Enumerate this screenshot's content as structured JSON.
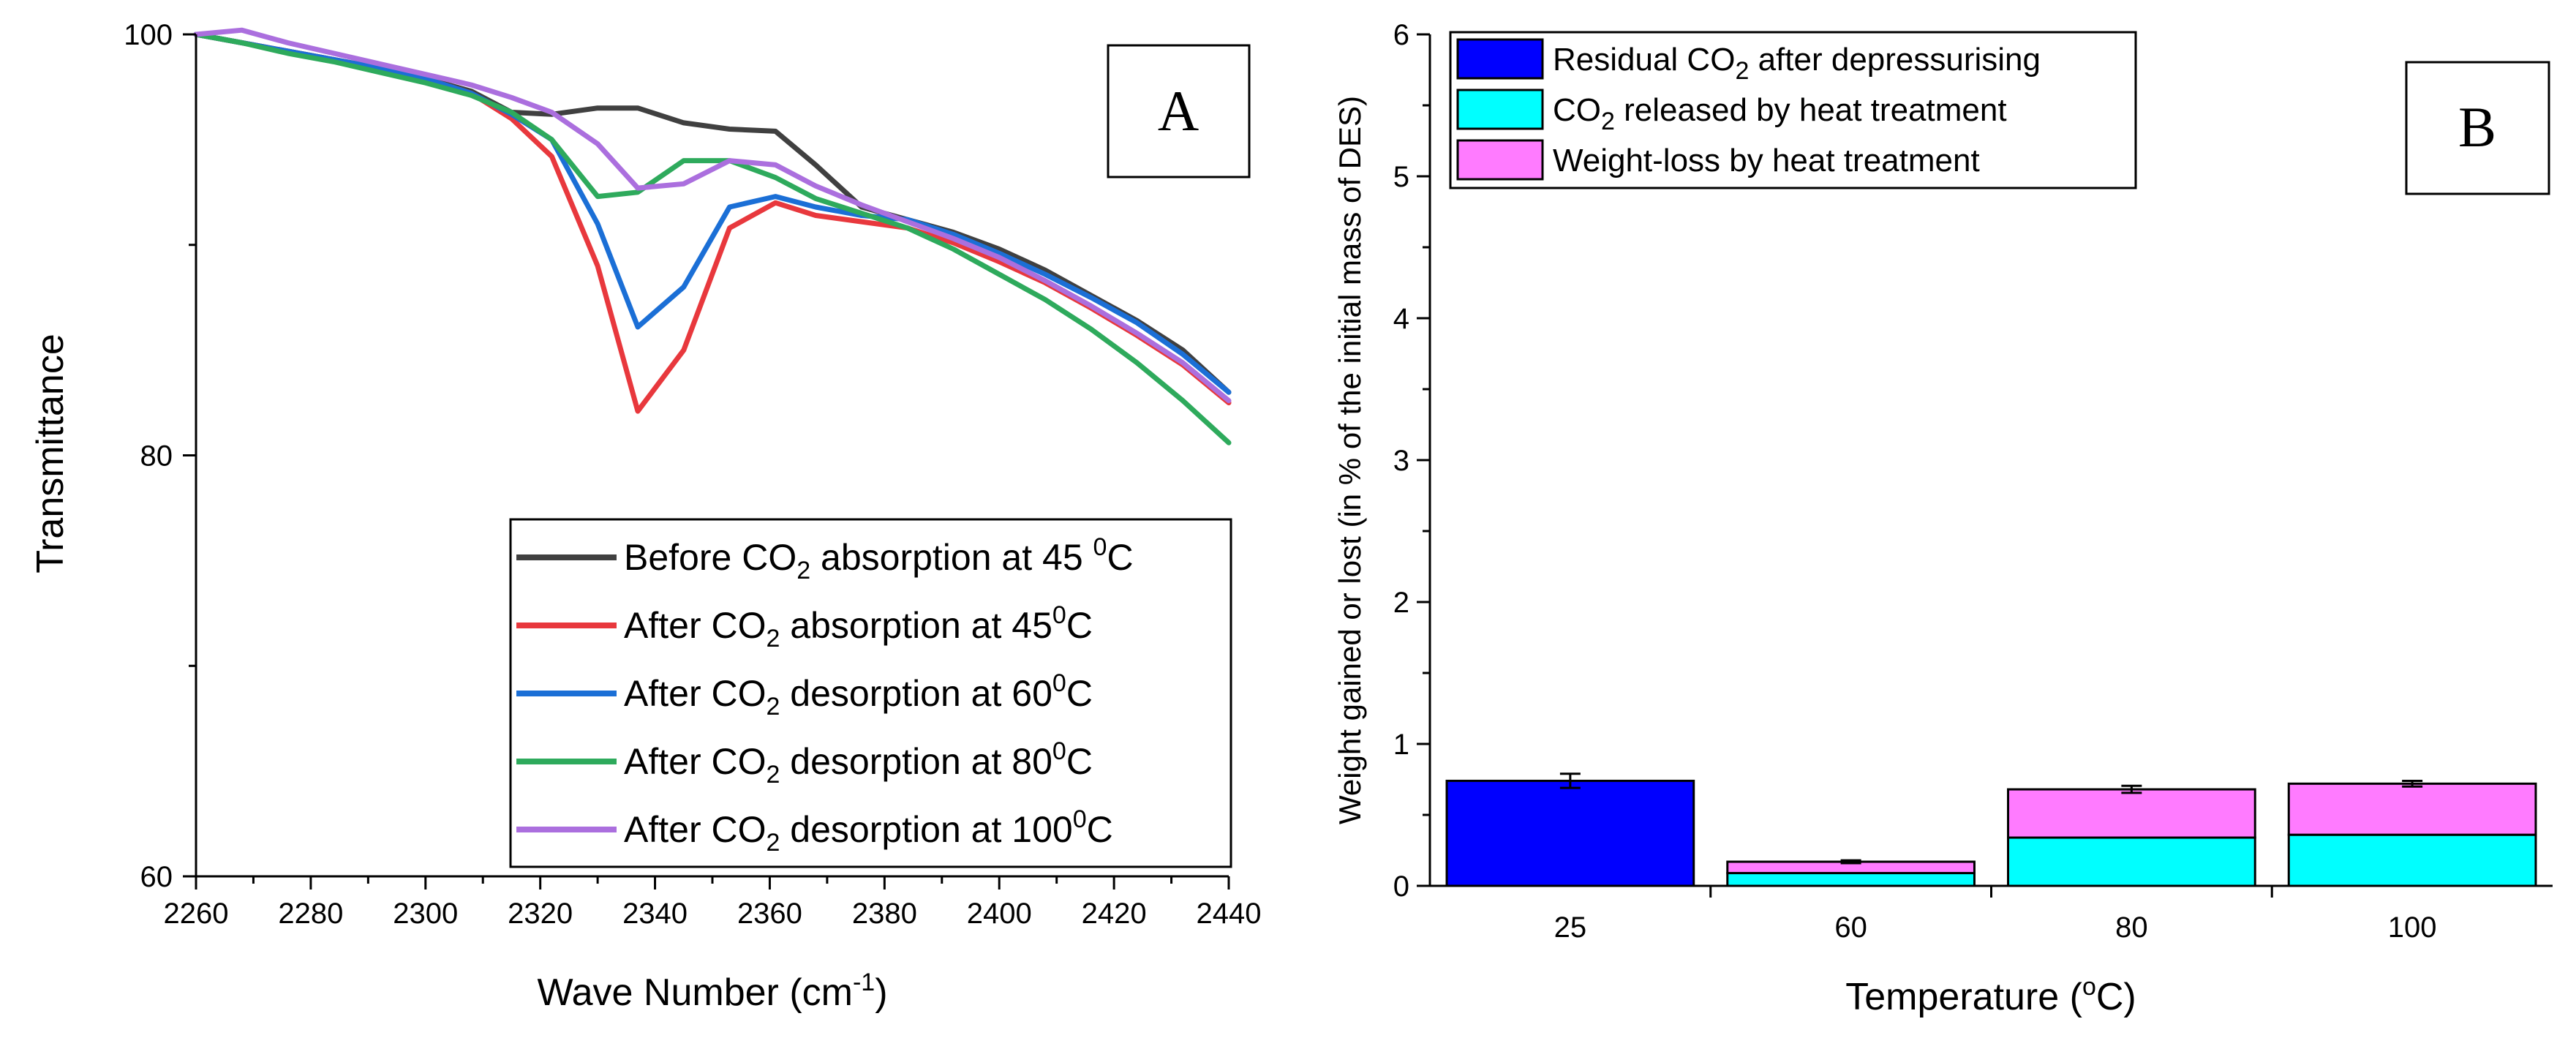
{
  "chart_data": [
    {
      "panel": "A",
      "type": "line",
      "xlabel": "Wave Number (cm",
      "xlabel_sup": "-1",
      "xlabel_end": ")",
      "ylabel": "Transmittance",
      "xlim": [
        2260,
        2440
      ],
      "ylim": [
        60,
        100
      ],
      "x_ticks": [
        "2260",
        "2280",
        "2300",
        "2320",
        "2340",
        "2360",
        "2380",
        "2400",
        "2420",
        "2440"
      ],
      "y_ticks": [
        "60",
        "80",
        "100"
      ],
      "grid": false,
      "legend_position": "bottom-right",
      "series": [
        {
          "name": "Before CO2 absorption at 45 0C",
          "legend": {
            "a": "Before CO",
            "sub": "2",
            "b": " absorption at 45 ",
            "sup": "0",
            "c": "C"
          },
          "color": "#404040",
          "points": [
            [
              2260,
              100
            ],
            [
              2268,
              99.6
            ],
            [
              2276,
              99.2
            ],
            [
              2284,
              98.8
            ],
            [
              2292,
              98.4
            ],
            [
              2300,
              97.9
            ],
            [
              2308,
              97.3
            ],
            [
              2315,
              96.3
            ],
            [
              2322,
              96.2
            ],
            [
              2330,
              96.5
            ],
            [
              2337,
              96.5
            ],
            [
              2345,
              95.8
            ],
            [
              2353,
              95.5
            ],
            [
              2361,
              95.4
            ],
            [
              2368,
              93.8
            ],
            [
              2376,
              91.8
            ],
            [
              2384,
              91.2
            ],
            [
              2392,
              90.6
            ],
            [
              2400,
              89.8
            ],
            [
              2408,
              88.8
            ],
            [
              2416,
              87.6
            ],
            [
              2424,
              86.4
            ],
            [
              2432,
              85.0
            ],
            [
              2440,
              83.0
            ]
          ]
        },
        {
          "name": "After CO2 absorption at 450C",
          "legend": {
            "a": "After CO",
            "sub": "2",
            "b": " absorption at 45",
            "sup": "0",
            "c": "C"
          },
          "color": "#e8383d",
          "points": [
            [
              2260,
              100
            ],
            [
              2268,
              99.6
            ],
            [
              2276,
              99.2
            ],
            [
              2284,
              98.8
            ],
            [
              2292,
              98.4
            ],
            [
              2300,
              97.9
            ],
            [
              2308,
              97.2
            ],
            [
              2315,
              96.0
            ],
            [
              2322,
              94.2
            ],
            [
              2330,
              89.0
            ],
            [
              2337,
              82.1
            ],
            [
              2345,
              85.0
            ],
            [
              2353,
              90.8
            ],
            [
              2361,
              92.0
            ],
            [
              2368,
              91.4
            ],
            [
              2376,
              91.1
            ],
            [
              2384,
              90.8
            ],
            [
              2392,
              90.1
            ],
            [
              2400,
              89.2
            ],
            [
              2408,
              88.2
            ],
            [
              2416,
              87.0
            ],
            [
              2424,
              85.7
            ],
            [
              2432,
              84.3
            ],
            [
              2440,
              82.5
            ]
          ]
        },
        {
          "name": "After CO2 desorption at 600C",
          "legend": {
            "a": "After CO",
            "sub": "2",
            "b": " desorption at 60",
            "sup": "0",
            "c": "C"
          },
          "color": "#1b6fd6",
          "points": [
            [
              2260,
              100
            ],
            [
              2268,
              99.6
            ],
            [
              2276,
              99.2
            ],
            [
              2284,
              98.8
            ],
            [
              2292,
              98.4
            ],
            [
              2300,
              97.9
            ],
            [
              2308,
              97.2
            ],
            [
              2315,
              96.2
            ],
            [
              2322,
              95.0
            ],
            [
              2330,
              91.0
            ],
            [
              2337,
              86.1
            ],
            [
              2345,
              88.0
            ],
            [
              2353,
              91.8
            ],
            [
              2361,
              92.3
            ],
            [
              2368,
              91.8
            ],
            [
              2376,
              91.4
            ],
            [
              2384,
              91.2
            ],
            [
              2392,
              90.5
            ],
            [
              2400,
              89.6
            ],
            [
              2408,
              88.6
            ],
            [
              2416,
              87.5
            ],
            [
              2424,
              86.3
            ],
            [
              2432,
              84.8
            ],
            [
              2440,
              83.0
            ]
          ]
        },
        {
          "name": "After CO2 desorption at 800C",
          "legend": {
            "a": "After CO",
            "sub": "2",
            "b": " desorption at 80",
            "sup": "0",
            "c": "C"
          },
          "color": "#2eaa5c",
          "points": [
            [
              2260,
              100
            ],
            [
              2268,
              99.6
            ],
            [
              2276,
              99.1
            ],
            [
              2284,
              98.7
            ],
            [
              2292,
              98.2
            ],
            [
              2300,
              97.7
            ],
            [
              2308,
              97.1
            ],
            [
              2315,
              96.3
            ],
            [
              2322,
              95.0
            ],
            [
              2330,
              92.3
            ],
            [
              2337,
              92.5
            ],
            [
              2345,
              94.0
            ],
            [
              2353,
              94.0
            ],
            [
              2361,
              93.2
            ],
            [
              2368,
              92.2
            ],
            [
              2376,
              91.5
            ],
            [
              2384,
              90.8
            ],
            [
              2392,
              89.8
            ],
            [
              2400,
              88.6
            ],
            [
              2408,
              87.4
            ],
            [
              2416,
              86.0
            ],
            [
              2424,
              84.4
            ],
            [
              2432,
              82.6
            ],
            [
              2440,
              80.6
            ]
          ]
        },
        {
          "name": "After CO2 desorption at 1000C",
          "legend": {
            "a": "After CO",
            "sub": "2",
            "b": " desorption at 100",
            "sup": "0",
            "c": "C"
          },
          "color": "#ab6fde",
          "points": [
            [
              2260,
              100
            ],
            [
              2268,
              100.2
            ],
            [
              2276,
              99.6
            ],
            [
              2284,
              99.1
            ],
            [
              2292,
              98.6
            ],
            [
              2300,
              98.1
            ],
            [
              2308,
              97.6
            ],
            [
              2315,
              97.0
            ],
            [
              2322,
              96.3
            ],
            [
              2330,
              94.8
            ],
            [
              2337,
              92.7
            ],
            [
              2345,
              92.9
            ],
            [
              2353,
              94.0
            ],
            [
              2361,
              93.8
            ],
            [
              2368,
              92.8
            ],
            [
              2376,
              91.9
            ],
            [
              2384,
              91.1
            ],
            [
              2392,
              90.3
            ],
            [
              2400,
              89.4
            ],
            [
              2408,
              88.3
            ],
            [
              2416,
              87.1
            ],
            [
              2424,
              85.8
            ],
            [
              2432,
              84.4
            ],
            [
              2440,
              82.6
            ]
          ]
        }
      ]
    },
    {
      "panel": "B",
      "type": "bar",
      "stacked": true,
      "xlabel": "Temperature (",
      "xlabel_sup": "o",
      "xlabel_end": "C)",
      "ylabel": "Weight gained or lost (in % of the initial mass of DES)",
      "categories": [
        "25",
        "60",
        "80",
        "100"
      ],
      "ylim": [
        0,
        6
      ],
      "y_ticks": [
        "0",
        "1",
        "2",
        "3",
        "4",
        "5",
        "6"
      ],
      "grid": false,
      "legend_position": "top-left",
      "series": [
        {
          "name": "Residual CO2 after depressurising",
          "legend": {
            "a": "Residual CO",
            "sub": "2",
            "b": " after depressurising"
          },
          "color": "#0000ff",
          "values": [
            0.74,
            0,
            0,
            0
          ],
          "errors": [
            0.05,
            0,
            0,
            0
          ]
        },
        {
          "name": "CO2 released by heat treatment",
          "legend": {
            "a": "CO",
            "sub": "2",
            "b": " released by heat treatment"
          },
          "color": "#00ffff",
          "values": [
            0,
            0.09,
            0.34,
            0.36
          ],
          "errors": [
            0,
            0,
            0,
            0
          ]
        },
        {
          "name": "Weight-loss by heat treatment",
          "legend": {
            "a": "Weight-loss by heat treatment",
            "sub": "",
            "b": ""
          },
          "color": "#ff7bff",
          "values": [
            0,
            0.08,
            0.34,
            0.36
          ],
          "errors": [
            0,
            0.01,
            0.025,
            0.02
          ]
        }
      ]
    }
  ],
  "panels": {
    "a_label": "A",
    "b_label": "B"
  }
}
